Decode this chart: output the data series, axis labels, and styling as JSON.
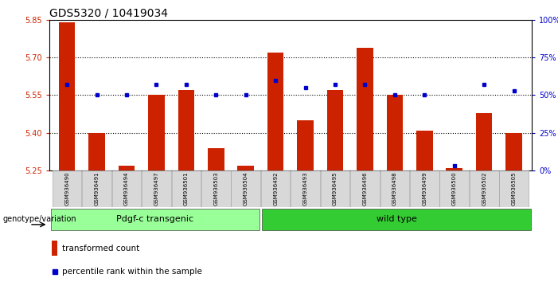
{
  "title": "GDS5320 / 10419034",
  "samples": [
    "GSM936490",
    "GSM936491",
    "GSM936494",
    "GSM936497",
    "GSM936501",
    "GSM936503",
    "GSM936504",
    "GSM936492",
    "GSM936493",
    "GSM936495",
    "GSM936496",
    "GSM936498",
    "GSM936499",
    "GSM936500",
    "GSM936502",
    "GSM936505"
  ],
  "red_values": [
    5.84,
    5.4,
    5.27,
    5.55,
    5.57,
    5.34,
    5.27,
    5.72,
    5.45,
    5.57,
    5.74,
    5.55,
    5.41,
    5.26,
    5.48,
    5.4
  ],
  "blue_values": [
    57,
    50,
    50,
    57,
    57,
    50,
    50,
    60,
    55,
    57,
    57,
    50,
    50,
    3,
    57,
    53
  ],
  "ymin": 5.25,
  "ymax": 5.85,
  "y2min": 0,
  "y2max": 100,
  "yticks": [
    5.25,
    5.4,
    5.55,
    5.7,
    5.85
  ],
  "y2ticks": [
    0,
    25,
    50,
    75,
    100
  ],
  "bar_color": "#cc2200",
  "dot_color": "#0000cc",
  "group1_label": "Pdgf-c transgenic",
  "group2_label": "wild type",
  "group1_color": "#99ff99",
  "group2_color": "#33cc33",
  "group1_count": 7,
  "group2_count": 9,
  "xlabel_genotype": "genotype/variation",
  "legend_red": "transformed count",
  "legend_blue": "percentile rank within the sample",
  "title_fontsize": 10,
  "tick_fontsize": 7,
  "label_fontsize": 7.5
}
